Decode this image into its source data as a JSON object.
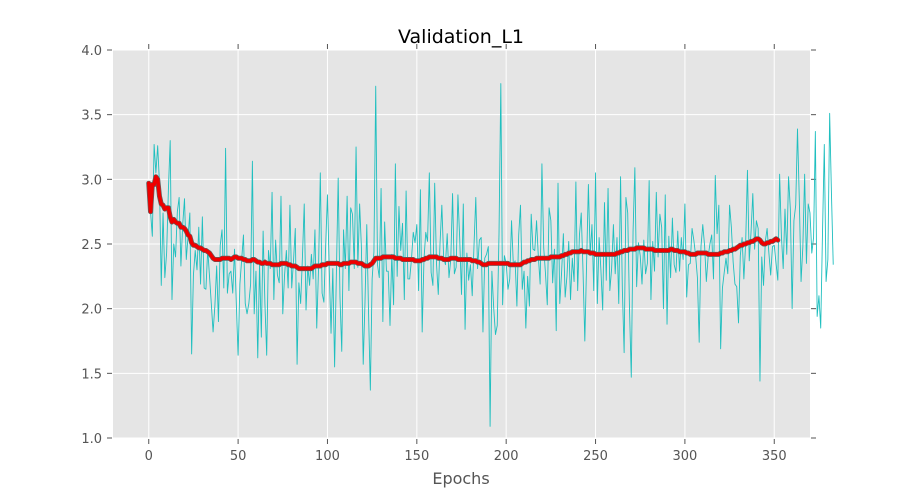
{
  "chart_data": {
    "type": "line",
    "title": "Validation_L1",
    "xlabel": "Epochs",
    "ylabel": "",
    "xlim": [
      -20,
      370
    ],
    "ylim": [
      1.0,
      4.0
    ],
    "x_ticks": [
      0,
      50,
      100,
      150,
      200,
      250,
      300,
      350
    ],
    "y_ticks": [
      1.0,
      1.5,
      2.0,
      2.5,
      3.0,
      3.5,
      4.0
    ],
    "x_tick_labels": [
      "0",
      "50",
      "100",
      "150",
      "200",
      "250",
      "300",
      "350"
    ],
    "y_tick_labels": [
      "1.0",
      "1.5",
      "2.0",
      "2.5",
      "3.0",
      "3.5",
      "4.0"
    ],
    "grid": true,
    "background": "#e5e5e5",
    "series": [
      {
        "role": "raw",
        "color": "#1fbfbf",
        "values": [
          2.95,
          2.75,
          2.56,
          3.27,
          3.05,
          3.26,
          2.97,
          2.18,
          2.74,
          2.24,
          2.43,
          2.92,
          3.3,
          2.07,
          2.5,
          2.4,
          2.75,
          2.86,
          2.33,
          2.65,
          2.85,
          2.38,
          2.56,
          2.74,
          1.65,
          2.26,
          2.45,
          2.3,
          2.63,
          2.19,
          2.71,
          2.16,
          2.15,
          2.46,
          2.25,
          2.04,
          1.82,
          2.02,
          2.33,
          1.9,
          2.49,
          2.61,
          2.16,
          3.24,
          2.12,
          2.27,
          2.29,
          2.12,
          2.46,
          2.04,
          1.64,
          2.19,
          2.38,
          2.57,
          2.04,
          1.96,
          2.04,
          2.19,
          3.14,
          1.96,
          2.29,
          1.62,
          2.35,
          1.78,
          2.6,
          2.04,
          1.64,
          2.45,
          2.31,
          2.9,
          2.07,
          2.53,
          2.26,
          2.2,
          2.87,
          1.96,
          2.26,
          2.45,
          2.16,
          2.8,
          2.16,
          2.37,
          2.62,
          1.57,
          2.2,
          2.04,
          2.4,
          2.81,
          1.99,
          2.33,
          2.18,
          2.42,
          2.23,
          2.61,
          1.85,
          2.31,
          3.05,
          2.12,
          2.05,
          2.49,
          2.88,
          2.3,
          1.81,
          2.31,
          1.55,
          2.28,
          3.01,
          2.09,
          1.67,
          2.61,
          2.31,
          2.87,
          2.14,
          2.78,
          2.73,
          2.31,
          3.25,
          2.32,
          2.81,
          2.47,
          1.57,
          2.05,
          2.65,
          1.96,
          1.37,
          2.23,
          2.44,
          3.72,
          2.34,
          2.24,
          2.93,
          1.9,
          2.67,
          2.29,
          2.29,
          1.87,
          2.42,
          2.03,
          3.12,
          2.25,
          2.79,
          2.45,
          2.66,
          2.07,
          2.91,
          2.23,
          2.23,
          2.38,
          2.59,
          2.51,
          2.65,
          2.14,
          2.92,
          1.82,
          2.38,
          2.59,
          2.52,
          3.05,
          2.28,
          2.18,
          2.97,
          2.35,
          2.11,
          2.51,
          2.8,
          2.4,
          2.34,
          2.58,
          2.24,
          2.38,
          2.89,
          2.27,
          2.32,
          2.88,
          2.54,
          2.11,
          2.81,
          1.84,
          2.43,
          2.22,
          2.34,
          2.1,
          2.49,
          2.86,
          2.31,
          2.53,
          2.55,
          1.82,
          2.39,
          2.42,
          2.48,
          1.09,
          2.29,
          2.01,
          1.8,
          1.87,
          2.59,
          3.74,
          2.03,
          2.41,
          2.35,
          2.15,
          2.23,
          2.68,
          2.34,
          2.37,
          2.02,
          2.57,
          2.8,
          2.15,
          2.29,
          1.85,
          2.25,
          2.02,
          2.73,
          2.46,
          2.45,
          2.68,
          2.4,
          2.19,
          3.12,
          2.47,
          2.27,
          2.03,
          2.78,
          2.68,
          2.2,
          2.46,
          1.83,
          2.97,
          2.04,
          2.28,
          2.58,
          2.09,
          2.25,
          2.52,
          2.07,
          2.39,
          2.21,
          2.98,
          2.14,
          2.57,
          2.74,
          2.29,
          1.75,
          2.35,
          2.96,
          2.41,
          2.65,
          2.14,
          3.05,
          2.04,
          2.55,
          2.3,
          1.99,
          2.82,
          2.22,
          2.93,
          2.14,
          2.31,
          2.65,
          2.27,
          2.55,
          2.04,
          3.02,
          2.15,
          1.66,
          2.86,
          2.74,
          2.0,
          1.47,
          2.6,
          3.09,
          2.17,
          2.51,
          2.41,
          2.19,
          2.53,
          2.27,
          2.35,
          2.99,
          2.07,
          2.52,
          2.29,
          2.9,
          2.4,
          2.73,
          2.63,
          2.0,
          2.88,
          1.88,
          2.56,
          2.24,
          2.7,
          2.34,
          2.28,
          2.6,
          2.29,
          2.55,
          2.38,
          2.81,
          2.09,
          2.34,
          2.35,
          2.62,
          2.53,
          2.41,
          2.24,
          1.74,
          2.48,
          2.65,
          2.49,
          2.21,
          2.4,
          2.5,
          2.57,
          2.23,
          3.03,
          2.58,
          2.8,
          1.69,
          2.16,
          2.28,
          2.39,
          2.27,
          2.8,
          2.63,
          2.36,
          2.19,
          2.17,
          1.89,
          2.41,
          2.55,
          2.23,
          2.51,
          3.07,
          2.37,
          2.59,
          2.89,
          2.46,
          2.68,
          2.62,
          1.44,
          2.4,
          2.18,
          2.52,
          2.62,
          2.43,
          2.26,
          2.48,
          2.49,
          2.35,
          2.22,
          3.04,
          2.56,
          2.31,
          2.77,
          2.42,
          3.02,
          2.77,
          2.0,
          2.68,
          2.8,
          3.39,
          2.85,
          2.21,
          2.48,
          3.04,
          2.35,
          2.81,
          2.74,
          2.43,
          2.55,
          3.37,
          1.94,
          2.1,
          1.85,
          2.59,
          3.27,
          2.21,
          2.38,
          3.51,
          2.89,
          2.34
        ]
      },
      {
        "role": "smoothed",
        "color": "#ee0000",
        "edge_color": "#606060",
        "values": [
          2.97,
          2.75,
          2.96,
          2.96,
          3.02,
          3.0,
          2.87,
          2.81,
          2.8,
          2.77,
          2.78,
          2.78,
          2.71,
          2.67,
          2.69,
          2.67,
          2.66,
          2.66,
          2.63,
          2.63,
          2.62,
          2.6,
          2.57,
          2.56,
          2.51,
          2.49,
          2.49,
          2.48,
          2.47,
          2.47,
          2.46,
          2.45,
          2.45,
          2.44,
          2.43,
          2.41,
          2.39,
          2.38,
          2.38,
          2.38,
          2.38,
          2.39,
          2.39,
          2.39,
          2.39,
          2.39,
          2.38,
          2.39,
          2.4,
          2.4,
          2.39,
          2.39,
          2.39,
          2.38,
          2.38,
          2.37,
          2.37,
          2.37,
          2.38,
          2.38,
          2.37,
          2.36,
          2.36,
          2.35,
          2.35,
          2.36,
          2.35,
          2.35,
          2.35,
          2.34,
          2.34,
          2.34,
          2.34,
          2.34,
          2.35,
          2.35,
          2.35,
          2.35,
          2.34,
          2.34,
          2.33,
          2.33,
          2.33,
          2.32,
          2.31,
          2.31,
          2.31,
          2.31,
          2.31,
          2.31,
          2.31,
          2.31,
          2.32,
          2.33,
          2.33,
          2.33,
          2.33,
          2.34,
          2.34,
          2.34,
          2.35,
          2.35,
          2.35,
          2.35,
          2.35,
          2.35,
          2.35,
          2.34,
          2.34,
          2.35,
          2.35,
          2.35,
          2.35,
          2.36,
          2.36,
          2.36,
          2.36,
          2.35,
          2.35,
          2.35,
          2.34,
          2.33,
          2.33,
          2.33,
          2.34,
          2.35,
          2.37,
          2.39,
          2.39,
          2.39,
          2.39,
          2.4,
          2.4,
          2.4,
          2.4,
          2.4,
          2.4,
          2.4,
          2.39,
          2.39,
          2.39,
          2.39,
          2.38,
          2.38,
          2.38,
          2.38,
          2.38,
          2.38,
          2.38,
          2.37,
          2.37,
          2.37,
          2.37,
          2.38,
          2.38,
          2.39,
          2.39,
          2.4,
          2.4,
          2.4,
          2.4,
          2.4,
          2.39,
          2.39,
          2.39,
          2.38,
          2.38,
          2.38,
          2.38,
          2.39,
          2.39,
          2.39,
          2.39,
          2.38,
          2.38,
          2.38,
          2.38,
          2.38,
          2.38,
          2.38,
          2.38,
          2.37,
          2.37,
          2.37,
          2.36,
          2.36,
          2.35,
          2.34,
          2.34,
          2.34,
          2.35,
          2.35,
          2.35,
          2.35,
          2.35,
          2.35,
          2.35,
          2.35,
          2.35,
          2.35,
          2.35,
          2.35,
          2.34,
          2.34,
          2.34,
          2.34,
          2.34,
          2.34,
          2.34,
          2.35,
          2.36,
          2.36,
          2.37,
          2.37,
          2.38,
          2.38,
          2.38,
          2.39,
          2.39,
          2.39,
          2.39,
          2.39,
          2.39,
          2.39,
          2.39,
          2.4,
          2.4,
          2.4,
          2.4,
          2.4,
          2.4,
          2.41,
          2.41,
          2.42,
          2.42,
          2.43,
          2.43,
          2.44,
          2.44,
          2.44,
          2.44,
          2.44,
          2.45,
          2.44,
          2.44,
          2.44,
          2.44,
          2.43,
          2.43,
          2.43,
          2.42,
          2.42,
          2.42,
          2.42,
          2.42,
          2.42,
          2.42,
          2.42,
          2.42,
          2.42,
          2.42,
          2.42,
          2.43,
          2.43,
          2.44,
          2.44,
          2.45,
          2.45,
          2.45,
          2.46,
          2.46,
          2.46,
          2.46,
          2.47,
          2.47,
          2.47,
          2.47,
          2.47,
          2.46,
          2.46,
          2.46,
          2.46,
          2.46,
          2.45,
          2.45,
          2.45,
          2.45,
          2.45,
          2.45,
          2.45,
          2.45,
          2.45,
          2.46,
          2.46,
          2.45,
          2.45,
          2.45,
          2.44,
          2.44,
          2.44,
          2.44,
          2.43,
          2.43,
          2.42,
          2.42,
          2.42,
          2.42,
          2.43,
          2.43,
          2.43,
          2.43,
          2.43,
          2.43,
          2.42,
          2.42,
          2.42,
          2.42,
          2.42,
          2.42,
          2.42,
          2.43,
          2.43,
          2.44,
          2.44,
          2.44,
          2.45,
          2.45,
          2.46,
          2.46,
          2.47,
          2.48,
          2.49,
          2.49,
          2.5,
          2.5,
          2.51,
          2.51,
          2.52,
          2.52,
          2.53,
          2.54,
          2.54,
          2.53,
          2.51,
          2.5,
          2.5,
          2.51,
          2.51,
          2.52,
          2.52,
          2.53,
          2.54,
          2.53
        ]
      }
    ]
  }
}
